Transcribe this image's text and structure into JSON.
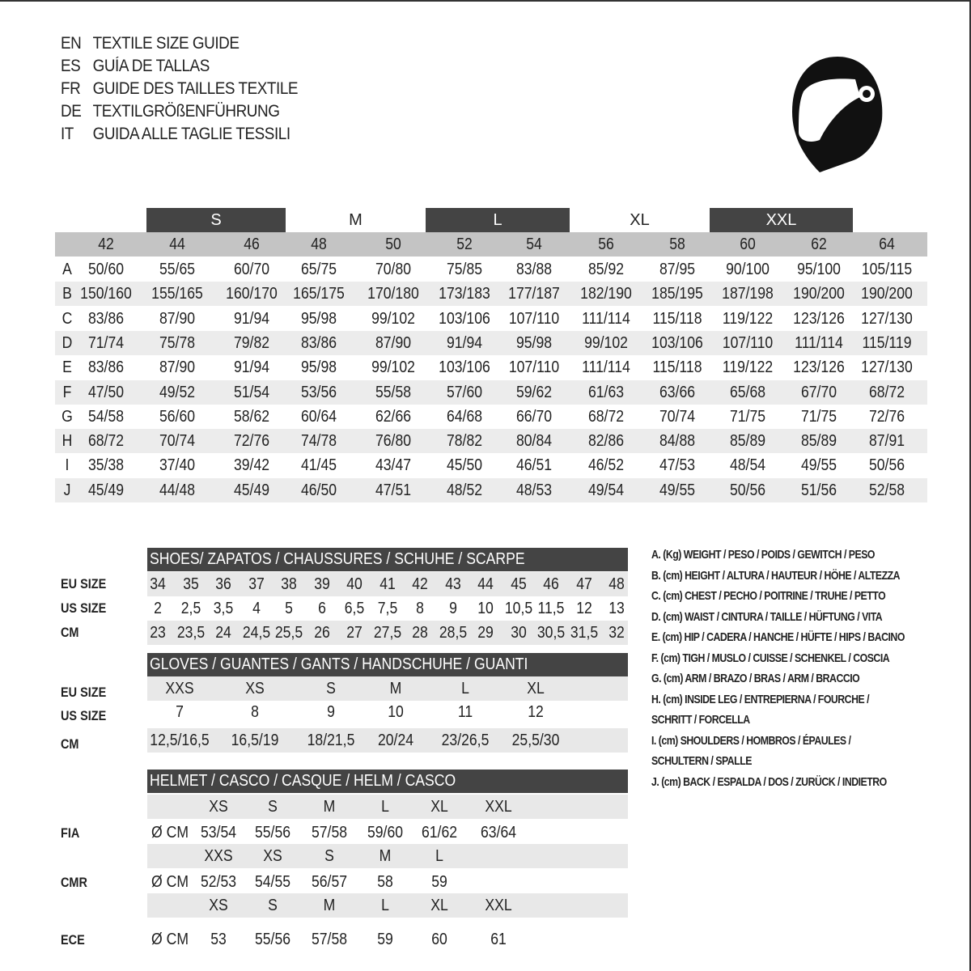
{
  "titles": [
    {
      "code": "EN",
      "text": "TEXTILE SIZE GUIDE"
    },
    {
      "code": "ES",
      "text": "GUÍA DE TALLAS"
    },
    {
      "code": "FR",
      "text": "GUIDE DES TAILLES TEXTILE"
    },
    {
      "code": "DE",
      "text": "TEXTILGRÖßENFÜHRUNG"
    },
    {
      "code": "IT",
      "text": "GUIDA ALLE TAGLIE TESSILI"
    }
  ],
  "logo": {
    "icon": "helmet-icon"
  },
  "textile": {
    "bands": [
      "S",
      "M",
      "L",
      "XL",
      "XXL"
    ],
    "sizes": [
      "42",
      "44",
      "46",
      "48",
      "50",
      "52",
      "54",
      "56",
      "58",
      "60",
      "62",
      "64"
    ],
    "rows": [
      {
        "label": "A",
        "values": [
          "50/60",
          "55/65",
          "60/70",
          "65/75",
          "70/80",
          "75/85",
          "83/88",
          "85/92",
          "87/95",
          "90/100",
          "95/100",
          "105/115"
        ]
      },
      {
        "label": "B",
        "values": [
          "150/160",
          "155/165",
          "160/170",
          "165/175",
          "170/180",
          "173/183",
          "177/187",
          "182/190",
          "185/195",
          "187/198",
          "190/200",
          "190/200"
        ]
      },
      {
        "label": "C",
        "values": [
          "83/86",
          "87/90",
          "91/94",
          "95/98",
          "99/102",
          "103/106",
          "107/110",
          "111/114",
          "115/118",
          "119/122",
          "123/126",
          "127/130"
        ]
      },
      {
        "label": "D",
        "values": [
          "71/74",
          "75/78",
          "79/82",
          "83/86",
          "87/90",
          "91/94",
          "95/98",
          "99/102",
          "103/106",
          "107/110",
          "111/114",
          "115/119"
        ]
      },
      {
        "label": "E",
        "values": [
          "83/86",
          "87/90",
          "91/94",
          "95/98",
          "99/102",
          "103/106",
          "107/110",
          "111/114",
          "115/118",
          "119/122",
          "123/126",
          "127/130"
        ]
      },
      {
        "label": "F",
        "values": [
          "47/50",
          "49/52",
          "51/54",
          "53/56",
          "55/58",
          "57/60",
          "59/62",
          "61/63",
          "63/66",
          "65/68",
          "67/70",
          "68/72"
        ]
      },
      {
        "label": "G",
        "values": [
          "54/58",
          "56/60",
          "58/62",
          "60/64",
          "62/66",
          "64/68",
          "66/70",
          "68/72",
          "70/74",
          "71/75",
          "71/75",
          "72/76"
        ]
      },
      {
        "label": "H",
        "values": [
          "68/72",
          "70/74",
          "72/76",
          "74/78",
          "76/80",
          "78/82",
          "80/84",
          "82/86",
          "84/88",
          "85/89",
          "85/89",
          "87/91"
        ]
      },
      {
        "label": "I",
        "values": [
          "35/38",
          "37/40",
          "39/42",
          "41/45",
          "43/47",
          "45/50",
          "46/51",
          "46/52",
          "47/53",
          "48/54",
          "49/55",
          "50/56"
        ]
      },
      {
        "label": "J",
        "values": [
          "45/49",
          "44/48",
          "45/49",
          "46/50",
          "47/51",
          "48/52",
          "48/53",
          "49/54",
          "49/55",
          "50/56",
          "51/56",
          "52/58"
        ]
      }
    ]
  },
  "shoes": {
    "title": "SHOES/ ZAPATOS / CHAUSSURES / SCHUHE / SCARPE",
    "rows": [
      {
        "label": "EU SIZE",
        "values": [
          "34",
          "35",
          "36",
          "37",
          "38",
          "39",
          "40",
          "41",
          "42",
          "43",
          "44",
          "45",
          "46",
          "47",
          "48"
        ]
      },
      {
        "label": "US SIZE",
        "values": [
          "2",
          "2,5",
          "3,5",
          "4",
          "5",
          "6",
          "6,5",
          "7,5",
          "8",
          "9",
          "10",
          "10,5",
          "11,5",
          "12",
          "13"
        ]
      },
      {
        "label": "CM",
        "values": [
          "23",
          "23,5",
          "24",
          "24,5",
          "25,5",
          "26",
          "27",
          "27,5",
          "28",
          "28,5",
          "29",
          "30",
          "30,5",
          "31,5",
          "32"
        ]
      }
    ]
  },
  "gloves": {
    "title": "GLOVES / GUANTES / GANTS / HANDSCHUHE / GUANTI",
    "rows": [
      {
        "label": "EU SIZE",
        "values": [
          "XXS",
          "XS",
          "S",
          "M",
          "L",
          "XL"
        ]
      },
      {
        "label": "US SIZE",
        "values": [
          "7",
          "8",
          "9",
          "10",
          "11",
          "12"
        ]
      },
      {
        "label": "CM",
        "values": [
          "12,5/16,5",
          "16,5/19",
          "18/21,5",
          "20/24",
          "23/26,5",
          "25,5/30"
        ]
      }
    ]
  },
  "helmet": {
    "title": "HELMET / CASCO / CASQUE / HELM / CASCO",
    "unit": "Ø CM",
    "groups": [
      {
        "label": "FIA",
        "sizes": [
          "XS",
          "S",
          "M",
          "L",
          "XL",
          "XXL"
        ],
        "values": [
          "53/54",
          "55/56",
          "57/58",
          "59/60",
          "61/62",
          "63/64"
        ]
      },
      {
        "label": "CMR",
        "sizes": [
          "XXS",
          "XS",
          "S",
          "M",
          "L"
        ],
        "values": [
          "52/53",
          "54/55",
          "56/57",
          "58",
          "59"
        ]
      },
      {
        "label": "ECE",
        "sizes": [
          "XS",
          "S",
          "M",
          "L",
          "XL",
          "XXL"
        ],
        "values": [
          "53",
          "55/56",
          "57/58",
          "59",
          "60",
          "61"
        ]
      }
    ]
  },
  "legend": [
    "A. (Kg) WEIGHT / PESO / POIDS / GEWITCH / PESO",
    "B. (cm) HEIGHT / ALTURA / HAUTEUR / HÖHE / ALTEZZA",
    "C. (cm) CHEST / PECHO / POITRINE / TRUHE / PETTO",
    "D. (cm) WAIST / CINTURA / TAILLE / HÜFTUNG / VITA",
    "E. (cm) HIP / CADERA / HANCHE / HÜFTE / HIPS /  BACINO",
    "F.  (cm) TIGH / MUSLO / CUISSE / SCHENKEL / COSCIA",
    "G. (cm) ARM  / BRAZO / BRAS / ARM / BRACCIO",
    "H. (cm) INSIDE LEG / ENTREPIERNA / FOURCHE /",
    "SCHRITT / FORCELLA",
    "I.  (cm) SHOULDERS / HOMBROS / ÉPAULES /",
    "SCHULTERN / SPALLE",
    "J. (cm) BACK / ESPALDA / DOS / ZURÜCK / INDIETRO"
  ]
}
